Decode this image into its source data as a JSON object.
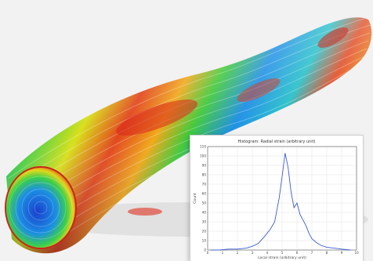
{
  "scene": {
    "subject": "bundle of strands colored by stress map",
    "palette": [
      "#1f3fd1",
      "#1e90ff",
      "#19c2c2",
      "#41c93b",
      "#d8e31c",
      "#f2a21a",
      "#e0301e"
    ],
    "background_color": "#f2f2f2"
  },
  "chart_data": {
    "type": "line",
    "title": "Histogram: Radial strain (arbitrary unit)",
    "xlabel": "Local strain (arbitrary unit)",
    "ylabel": "Count",
    "xlim": [
      0,
      10
    ],
    "ylim": [
      0,
      110
    ],
    "x_ticks": [
      0,
      1,
      2,
      3,
      4,
      5,
      6,
      7,
      8,
      9,
      10
    ],
    "y_ticks": [
      0,
      10,
      20,
      30,
      40,
      50,
      60,
      70,
      80,
      90,
      100,
      110
    ],
    "grid": true,
    "series": [
      {
        "color": "#3b5bd6",
        "x": [
          0.2,
          0.8,
          1.4,
          2.0,
          2.6,
          3.0,
          3.4,
          3.8,
          4.2,
          4.5,
          4.8,
          5.0,
          5.2,
          5.4,
          5.6,
          5.8,
          6.0,
          6.2,
          6.4,
          6.6,
          6.8,
          7.0,
          7.3,
          7.6,
          8.0,
          8.5,
          9.0,
          9.6
        ],
        "values": [
          0,
          0,
          1,
          1,
          2,
          4,
          7,
          14,
          22,
          30,
          55,
          78,
          103,
          88,
          62,
          45,
          50,
          38,
          32,
          26,
          18,
          12,
          8,
          5,
          3,
          2,
          1,
          0
        ]
      }
    ]
  }
}
